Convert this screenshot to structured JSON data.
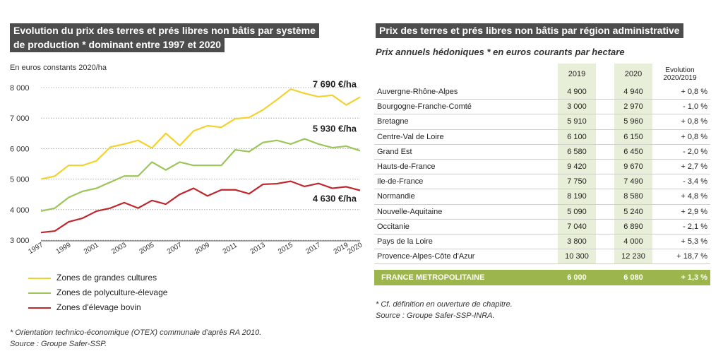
{
  "left_chart": {
    "title_line1": "Evolution du prix des terres et prés libres non bâtis par système",
    "title_line2": "de production * dominant entre 1997 et 2020",
    "unit": "En euros constants 2020/ha",
    "end_labels": [
      "7 690 €/ha",
      "5 930 €/ha",
      "4 630 €/ha"
    ],
    "footnote": "* Orientation technico-économique (OTEX) communale d'après RA 2010.",
    "source": "Source : Groupe Safer-SSP."
  },
  "chart_data": {
    "type": "line",
    "x": [
      1997,
      1998,
      1999,
      2000,
      2001,
      2002,
      2003,
      2004,
      2005,
      2006,
      2007,
      2008,
      2009,
      2010,
      2011,
      2012,
      2013,
      2014,
      2015,
      2016,
      2017,
      2018,
      2019,
      2020
    ],
    "xticks": [
      "1997",
      "1999",
      "2001",
      "2003",
      "2005",
      "2007",
      "2009",
      "2011",
      "2013",
      "2015",
      "2017",
      "2019",
      "2020"
    ],
    "yticks": [
      "3 000",
      "4 000",
      "5 000",
      "6 000",
      "7 000",
      "8 000"
    ],
    "ylim": [
      3000,
      8000
    ],
    "series": [
      {
        "name": "Zones de grandes cultures",
        "color": "#f2d22e",
        "values": [
          5000,
          5100,
          5450,
          5450,
          5600,
          6050,
          6150,
          6270,
          6020,
          6500,
          6100,
          6580,
          6750,
          6700,
          6980,
          7020,
          7270,
          7600,
          7950,
          7810,
          7700,
          7750,
          7430,
          7690
        ]
      },
      {
        "name": "Zones de polyculture-élevage",
        "color": "#9cc55a",
        "values": [
          3950,
          4050,
          4400,
          4600,
          4700,
          4900,
          5100,
          5100,
          5560,
          5300,
          5560,
          5450,
          5450,
          5450,
          5960,
          5900,
          6200,
          6270,
          6150,
          6320,
          6150,
          6030,
          6080,
          5930
        ]
      },
      {
        "name": "Zones d'élevage bovin",
        "color": "#c0272d",
        "values": [
          3250,
          3300,
          3600,
          3720,
          3950,
          4050,
          4230,
          4050,
          4300,
          4180,
          4500,
          4700,
          4450,
          4650,
          4650,
          4520,
          4830,
          4850,
          4930,
          4760,
          4860,
          4700,
          4750,
          4630
        ]
      }
    ]
  },
  "right_table": {
    "title": "Prix des terres et prés libres non bâtis par région administrative",
    "subtitle": "Prix annuels hédoniques * en euros courants par hectare",
    "col_2019": "2019",
    "col_2020": "2020",
    "col_evo_line1": "Evolution",
    "col_evo_line2": "2020/2019",
    "rows": [
      {
        "region": "Auvergne-Rhône-Alpes",
        "v2019": "4 900",
        "v2020": "4 940",
        "evo": "+ 0,8 %"
      },
      {
        "region": "Bourgogne-Franche-Comté",
        "v2019": "3 000",
        "v2020": "2 970",
        "evo": "- 1,0 %"
      },
      {
        "region": "Bretagne",
        "v2019": "5 910",
        "v2020": "5 960",
        "evo": "+ 0,8 %"
      },
      {
        "region": "Centre-Val de Loire",
        "v2019": "6 100",
        "v2020": "6 150",
        "evo": "+ 0,8 %"
      },
      {
        "region": "Grand Est",
        "v2019": "6 580",
        "v2020": "6 450",
        "evo": "- 2,0 %"
      },
      {
        "region": "Hauts-de-France",
        "v2019": "9 420",
        "v2020": "9 670",
        "evo": "+ 2,7 %"
      },
      {
        "region": "Ile-de-France",
        "v2019": "7 750",
        "v2020": "7 490",
        "evo": "- 3,4 %"
      },
      {
        "region": "Normandie",
        "v2019": "8 190",
        "v2020": "8 580",
        "evo": "+ 4,8 %"
      },
      {
        "region": "Nouvelle-Aquitaine",
        "v2019": "5 090",
        "v2020": "5 240",
        "evo": "+ 2,9 %"
      },
      {
        "region": "Occitanie",
        "v2019": "7 040",
        "v2020": "6 890",
        "evo": "- 2,1 %"
      },
      {
        "region": "Pays de la Loire",
        "v2019": "3 800",
        "v2020": "4 000",
        "evo": "+ 5,3 %"
      },
      {
        "region": "Provence-Alpes-Côte d'Azur",
        "v2019": "10 300",
        "v2020": "12 230",
        "evo": "+ 18,7 %"
      }
    ],
    "total": {
      "region": "FRANCE METROPOLITAINE",
      "v2019": "6 000",
      "v2020": "6 080",
      "evo": "+ 1,3 %"
    },
    "footnote": "* Cf. définition en ouverture de chapitre.",
    "source": "Source : Groupe Safer-SSP-INRA."
  }
}
